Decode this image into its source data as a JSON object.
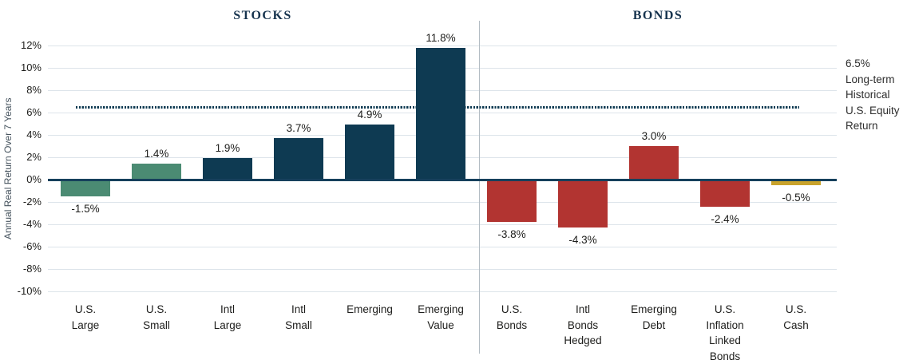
{
  "chart_data": {
    "type": "bar",
    "title": "",
    "ylabel": "Annual Real Return Over 7 Years",
    "xlabel": "",
    "ylim": [
      -10,
      12
    ],
    "grid": "horizontal",
    "legend": "none",
    "y_tick_values": [
      12,
      10,
      8,
      6,
      4,
      2,
      0,
      -2,
      -4,
      -6,
      -8,
      -10
    ],
    "y_tick_labels": [
      "12%",
      "10%",
      "8%",
      "6%",
      "4%",
      "2%",
      "0%",
      "-2%",
      "-4%",
      "-6%",
      "-8%",
      "-10%"
    ],
    "sections": [
      {
        "label": "STOCKS",
        "categories_span": [
          0,
          5
        ]
      },
      {
        "label": "BONDS",
        "categories_span": [
          6,
          10
        ]
      }
    ],
    "categories": [
      "U.S.\nLarge",
      "U.S.\nSmall",
      "Intl\nLarge",
      "Intl\nSmall",
      "Emerging",
      "Emerging\nValue",
      "U.S.\nBonds",
      "Intl\nBonds\nHedged",
      "Emerging\nDebt",
      "U.S.\nInflation\nLinked\nBonds",
      "U.S.\nCash"
    ],
    "values": [
      -1.5,
      1.4,
      1.9,
      3.7,
      4.9,
      11.8,
      -3.8,
      -4.3,
      3.0,
      -2.4,
      -0.5
    ],
    "value_labels": [
      "-1.5%",
      "1.4%",
      "1.9%",
      "3.7%",
      "4.9%",
      "11.8%",
      "-3.8%",
      "-4.3%",
      "3.0%",
      "-2.4%",
      "-0.5%"
    ],
    "bar_colors": [
      "#4b8b73",
      "#4b8b73",
      "#0e3a52",
      "#0e3a52",
      "#0e3a52",
      "#0e3a52",
      "#b23431",
      "#b23431",
      "#b23431",
      "#b23431",
      "#c9a32c"
    ],
    "series_color_legend": {
      "us_stocks": "#4b8b73",
      "intl_emerging_stocks": "#0e3a52",
      "bonds": "#b23431",
      "cash": "#c9a32c"
    },
    "reference_line": {
      "value": 6.5,
      "color": "#0e3a52",
      "style": "dotted",
      "annotation_lines": [
        "6.5%",
        "Long-term",
        "Historical",
        "U.S. Equity",
        "Return"
      ]
    }
  }
}
